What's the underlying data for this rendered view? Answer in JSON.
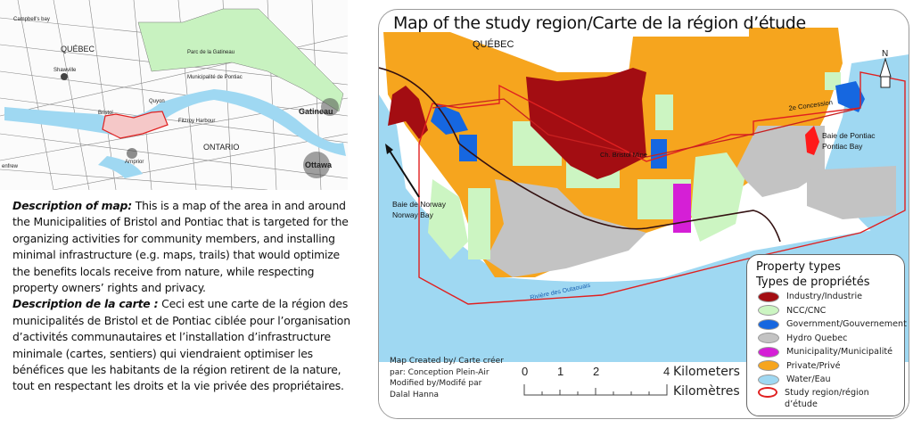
{
  "overview_map": {
    "labels": {
      "campbells_bay": "Campbell's bay",
      "quebec": "QUÉBEC",
      "shawville": "Shawville",
      "parc": "Parc de la Gatineau",
      "pontiac": "Municipalité de Pontiac",
      "quyon": "Quyon",
      "bristol": "Bristol",
      "fitzroy": "Fitzroy Harbour",
      "gatineau": "Gatineau",
      "ontario": "ONTARIO",
      "ottawa": "Ottawa",
      "arnprior": "Arnprior",
      "renfrew": "enfrew"
    }
  },
  "description": {
    "en_heading": "Description of map:",
    "en_text": " This is a map of the area in and around the Municipalities of Bristol and Pontiac that is targeted for the organizing activities for community members, and installing minimal infrastructure (e.g. maps, trails) that would optimize the benefits locals receive from nature, while respecting property owners’ rights and privacy.",
    "fr_heading": "Description de la carte :",
    "fr_text": " Ceci est une carte de la région des municipalités de Bristol et de Pontiac ciblée pour l’organisation d’activités communautaires et l’installation d’infrastructure minimale (cartes, sentiers) qui viendraient optimiser les bénéfices que les habitants de la région retirent de la nature, tout en respectant les droits et la vie privée des propriétaires."
  },
  "study_map": {
    "title": "Map of the study region/Carte de la région d’étude",
    "labels": {
      "quebec": "QUÉBEC",
      "bristol_mine": "Ch. Bristol Mine",
      "concession": "2e Concession",
      "norway_fr": "Baie de Norway",
      "norway_en": "Norway Bay",
      "pontiac_fr": "Baie de Pontiac",
      "pontiac_en": "Pontiac Bay",
      "river": "Rivière des Outaouais",
      "north": "N"
    },
    "legend": {
      "title_en": "Property types",
      "title_fr": "Types de propriétés",
      "items": [
        {
          "label": "Industry/Industrie",
          "color": "#a30d12"
        },
        {
          "label": "NCC/CNC",
          "color": "#ccf5c2"
        },
        {
          "label": "Government/Gouvernement",
          "color": "#1667e0"
        },
        {
          "label": "Hydro Quebec",
          "color": "#c3c3c3"
        },
        {
          "label": "Municipality/Municipalité",
          "color": "#d51fd6"
        },
        {
          "label": "Private/Privé",
          "color": "#f6a51e"
        },
        {
          "label": "Water/Eau",
          "color": "#9fd8f2"
        },
        {
          "label": "Study region/région d’étude",
          "color": "#e02020"
        }
      ]
    },
    "credits": [
      "Map Created by/ Carte créer",
      "par:  Conception Plein-Air",
      "Modified by/Modifé par",
      "Dalal Hanna"
    ],
    "scale": {
      "ticks": [
        "0",
        "1",
        "2",
        "4"
      ],
      "unit_en": "Kilometers",
      "unit_fr": "Kilomètres"
    }
  }
}
